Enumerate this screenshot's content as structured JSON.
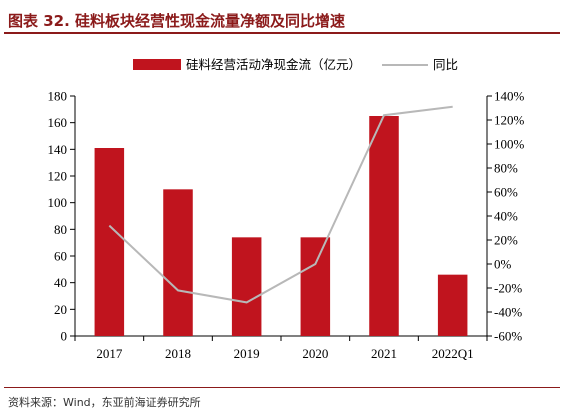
{
  "title": "图表 32. 硅料板块经营性现金流量净额及同比增速",
  "source": "资料来源：Wind，东亚前海证券研究所",
  "chart_data": {
    "type": "bar",
    "categories": [
      "2017",
      "2018",
      "2019",
      "2020",
      "2021",
      "2022Q1"
    ],
    "series": [
      {
        "name": "硅料经营活动净现金流（亿元）",
        "type": "bar",
        "axis": "left",
        "color": "#c0141e",
        "values": [
          141,
          110,
          74,
          74,
          165,
          46
        ]
      },
      {
        "name": "同比",
        "type": "line",
        "axis": "right",
        "color": "#b8b8b8",
        "values": [
          32,
          -22,
          -32,
          0,
          124,
          131
        ]
      }
    ],
    "ylim": [
      0,
      180
    ],
    "yticks": [
      "0",
      "20",
      "40",
      "60",
      "80",
      "100",
      "120",
      "140",
      "160",
      "180"
    ],
    "y2lim": [
      -60,
      140
    ],
    "y2ticks": [
      "-60%",
      "-40%",
      "-20%",
      "0%",
      "20%",
      "40%",
      "60%",
      "80%",
      "100%",
      "120%",
      "140%"
    ],
    "legend": "top-center",
    "grid": false
  }
}
